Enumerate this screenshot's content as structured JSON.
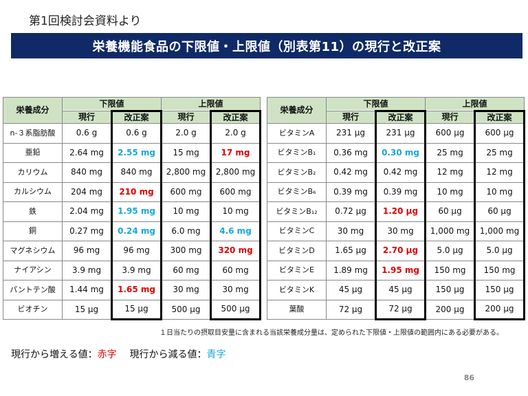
{
  "subtitle": "第1回検討会資料より",
  "title": "栄養機能食品の下限値・上限値（別表第11）の現行と改正案",
  "headers": {
    "nutrient": "栄養成分",
    "lower": "下限値",
    "upper": "上限値",
    "current": "現行",
    "proposed": "改正案"
  },
  "left_rows": [
    {
      "name": "n-３系脂肪酸",
      "lc": "0.6 g",
      "lp": "0.6 g",
      "lp_color": "",
      "uc": "2.0 g",
      "up": "2.0 g",
      "up_color": ""
    },
    {
      "name": "亜鉛",
      "lc": "2.64 mg",
      "lp": "2.55 mg",
      "lp_color": "blue",
      "uc": "15 mg",
      "up": "17 mg",
      "up_color": "red"
    },
    {
      "name": "カリウム",
      "lc": "840 mg",
      "lp": "840 mg",
      "lp_color": "",
      "uc": "2,800 mg",
      "up": "2,800 mg",
      "up_color": ""
    },
    {
      "name": "カルシウム",
      "lc": "204 mg",
      "lp": "210 mg",
      "lp_color": "red",
      "uc": "600 mg",
      "up": "600 mg",
      "up_color": ""
    },
    {
      "name": "鉄",
      "lc": "2.04 mg",
      "lp": "1.95 mg",
      "lp_color": "blue",
      "uc": "10 mg",
      "up": "10 mg",
      "up_color": ""
    },
    {
      "name": "銅",
      "lc": "0.27 mg",
      "lp": "0.24 mg",
      "lp_color": "blue",
      "uc": "6.0 mg",
      "up": "4.6 mg",
      "up_color": "blue"
    },
    {
      "name": "マグネシウム",
      "lc": "96 mg",
      "lp": "96 mg",
      "lp_color": "",
      "uc": "300 mg",
      "up": "320 mg",
      "up_color": "red"
    },
    {
      "name": "ナイアシン",
      "lc": "3.9 mg",
      "lp": "3.9 mg",
      "lp_color": "",
      "uc": "60 mg",
      "up": "60 mg",
      "up_color": ""
    },
    {
      "name": "パントテン酸",
      "lc": "1.44 mg",
      "lp": "1.65 mg",
      "lp_color": "red",
      "uc": "30 mg",
      "up": "30 mg",
      "up_color": ""
    },
    {
      "name": "ビオチン",
      "lc": "15 μg",
      "lp": "15 μg",
      "lp_color": "",
      "uc": "500 μg",
      "up": "500 μg",
      "up_color": ""
    }
  ],
  "right_rows": [
    {
      "name": "ビタミンA",
      "lc": "231 μg",
      "lp": "231 μg",
      "lp_color": "",
      "uc": "600 μg",
      "up": "600 μg",
      "up_color": ""
    },
    {
      "name": "ビタミンB₁",
      "lc": "0.36 mg",
      "lp": "0.30 mg",
      "lp_color": "blue",
      "uc": "25 mg",
      "up": "25 mg",
      "up_color": ""
    },
    {
      "name": "ビタミンB₂",
      "lc": "0.42 mg",
      "lp": "0.42 mg",
      "lp_color": "",
      "uc": "12 mg",
      "up": "12 mg",
      "up_color": ""
    },
    {
      "name": "ビタミンB₆",
      "lc": "0.39 mg",
      "lp": "0.39 mg",
      "lp_color": "",
      "uc": "10 mg",
      "up": "10 mg",
      "up_color": ""
    },
    {
      "name": "ビタミンB₁₂",
      "lc": "0.72 μg",
      "lp": "1.20 μg",
      "lp_color": "red",
      "uc": "60 μg",
      "up": "60 μg",
      "up_color": ""
    },
    {
      "name": "ビタミンC",
      "lc": "30 mg",
      "lp": "30 mg",
      "lp_color": "",
      "uc": "1,000 mg",
      "up": "1,000 mg",
      "up_color": ""
    },
    {
      "name": "ビタミンD",
      "lc": "1.65 μg",
      "lp": "2.70 μg",
      "lp_color": "red",
      "uc": "5.0 μg",
      "up": "5.0 μg",
      "up_color": ""
    },
    {
      "name": "ビタミンE",
      "lc": "1.89 mg",
      "lp": "1.95 mg",
      "lp_color": "red",
      "uc": "150 mg",
      "up": "150 mg",
      "up_color": ""
    },
    {
      "name": "ビタミンK",
      "lc": "45 μg",
      "lp": "45 μg",
      "lp_color": "",
      "uc": "150 μg",
      "up": "150 μg",
      "up_color": ""
    },
    {
      "name": "葉酸",
      "lc": "72 μg",
      "lp": "72 μg",
      "lp_color": "",
      "uc": "200 μg",
      "up": "200 μg",
      "up_color": ""
    }
  ],
  "footnote": "１日当たりの摂取目安量に含まれる当該栄養成分量は、定められた下限値・上限値の範囲内にある必要がある。",
  "legend": {
    "increase_label": "現行から増える値：",
    "increase_word": "赤字",
    "decrease_label": "現行から減る値：",
    "decrease_word": "青字"
  },
  "page_number": "86",
  "colors": {
    "banner": "#0f2a66",
    "header": "#cfe3c4",
    "increase": "#e00000",
    "decrease": "#1aa7d8"
  }
}
